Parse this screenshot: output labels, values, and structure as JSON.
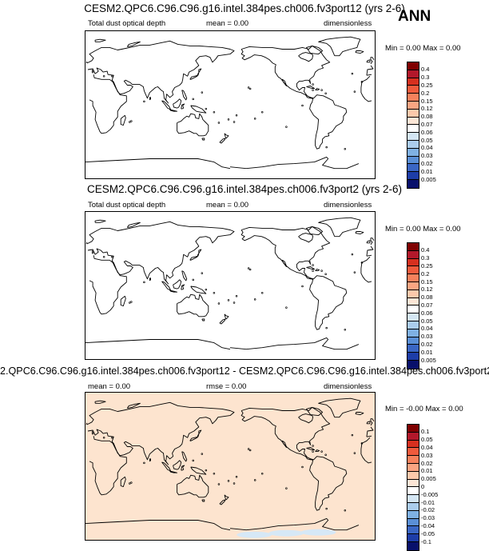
{
  "badge": "ANN",
  "colors": {
    "coast": "#000000",
    "diff_background": "#FDE4CF",
    "antarctic_patch": "#D6E8F6"
  },
  "panels": [
    {
      "title": "CESM2.QPC6.C96.C96.g16.intel.384pes.ch006.fv3port12 (yrs 2-6)",
      "left_label": "Total dust optical depth",
      "center_label": "mean =  0.00",
      "right_label": "dimensionless",
      "minmax": "Min =  0.00 Max =  0.00",
      "fill": "#FFFFFF",
      "levels": [
        "0.4",
        "0.3",
        "0.25",
        "0.2",
        "0.15",
        "0.12",
        "0.08",
        "0.07",
        "0.06",
        "0.05",
        "0.04",
        "0.03",
        "0.02",
        "0.01",
        "0.005"
      ]
    },
    {
      "title": "CESM2.QPC6.C96.C96.g16.intel.384pes.ch006.fv3port2 (yrs 2-6)",
      "left_label": "Total dust optical depth",
      "center_label": "mean =  0.00",
      "right_label": "dimensionless",
      "minmax": "Min =  0.00 Max =  0.00",
      "fill": "#FFFFFF",
      "levels": [
        "0.4",
        "0.3",
        "0.25",
        "0.2",
        "0.15",
        "0.12",
        "0.08",
        "0.07",
        "0.06",
        "0.05",
        "0.04",
        "0.03",
        "0.02",
        "0.01",
        "0.005"
      ]
    },
    {
      "title": "2.QPC6.C96.C96.g16.intel.384pes.ch006.fv3port12 - CESM2.QPC6.C96.C96.g16.intel.384pes.ch006.fv3port2",
      "left_label": "mean =  0.00",
      "center_label": "rmse =  0.00",
      "right_label": "dimensionless",
      "minmax": "Min = -0.00 Max =  0.00",
      "fill": "#FDE4CF",
      "levels": [
        "0.1",
        "0.05",
        "0.04",
        "0.03",
        "0.02",
        "0.01",
        "0.005",
        "0",
        "-0.005",
        "-0.01",
        "-0.02",
        "-0.03",
        "-0.04",
        "-0.05",
        "-0.1"
      ]
    }
  ],
  "colorbar_colors": [
    "#7F0000",
    "#B2182B",
    "#D6301F",
    "#EF5A3C",
    "#F6815C",
    "#FBA582",
    "#FCC9AB",
    "#FDE6D6",
    "#FFFFFF",
    "#D4E6F4",
    "#ABCDED",
    "#7FB1E3",
    "#5A8FD6",
    "#3A66C4",
    "#1D3DA8",
    "#08106B"
  ],
  "chart_data": {
    "type": "heatmap",
    "projection": "cylindrical-equidistant, pacific-centred",
    "variable": "Total dust optical depth",
    "units": "dimensionless",
    "season": "ANN",
    "maps": [
      {
        "case": "CESM2.QPC6.C96.C96.g16.intel.384pes.ch006.fv3port12 (yrs 2-6)",
        "mean": 0.0,
        "min": 0.0,
        "max": 0.0
      },
      {
        "case": "CESM2.QPC6.C96.C96.g16.intel.384pes.ch006.fv3port2 (yrs 2-6)",
        "mean": 0.0,
        "min": 0.0,
        "max": 0.0
      },
      {
        "case": "difference",
        "mean": 0.0,
        "rmse": 0.0,
        "min": -0.0,
        "max": 0.0
      }
    ]
  }
}
